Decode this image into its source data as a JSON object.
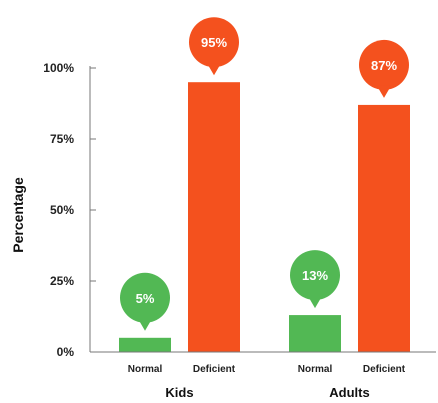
{
  "chart_data": {
    "type": "bar",
    "ylabel": "Percentage",
    "ylim": [
      0,
      100
    ],
    "yticks": [
      "0%",
      "25%",
      "50%",
      "75%",
      "100%"
    ],
    "groups": [
      {
        "name": "Kids",
        "bars": [
          {
            "label": "Normal",
            "value": 5,
            "value_label": "5%",
            "color": "#52b854"
          },
          {
            "label": "Deficient",
            "value": 95,
            "value_label": "95%",
            "color": "#f4511e"
          }
        ]
      },
      {
        "name": "Adults",
        "bars": [
          {
            "label": "Normal",
            "value": 13,
            "value_label": "13%",
            "color": "#52b854"
          },
          {
            "label": "Deficient",
            "value": 87,
            "value_label": "87%",
            "color": "#f4511e"
          }
        ]
      }
    ]
  }
}
